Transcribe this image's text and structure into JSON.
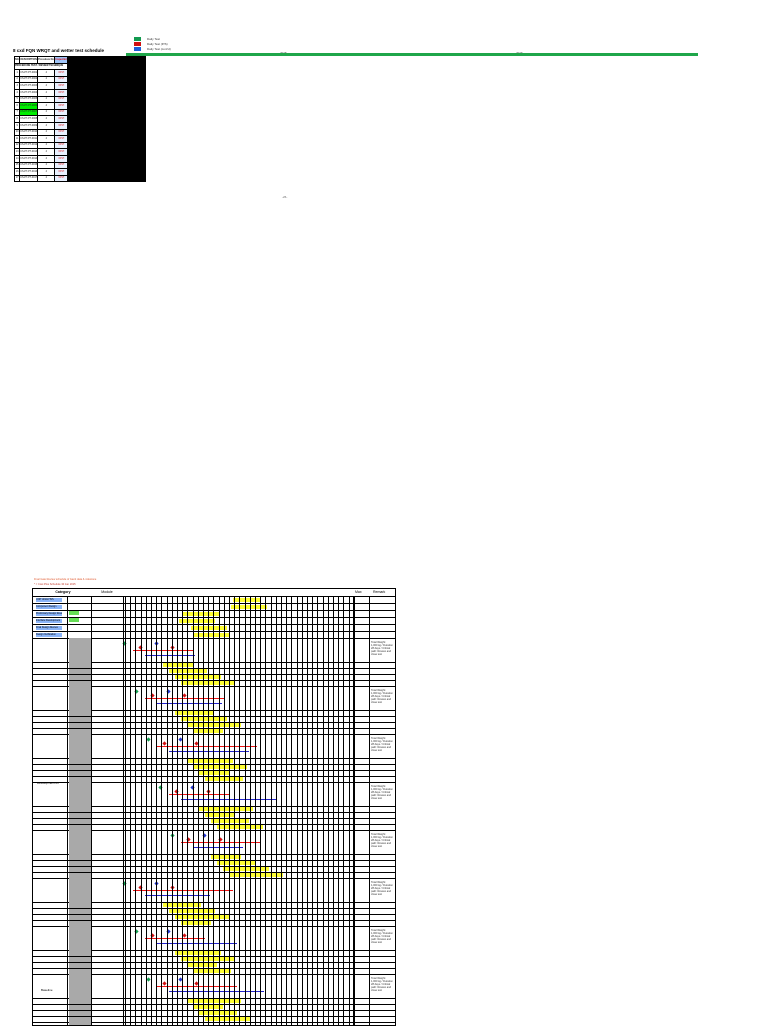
{
  "legend": {
    "items": [
      {
        "label": "Daily Test",
        "color": "#129a4f"
      },
      {
        "label": "Daily Test (P/S)",
        "color": "#d01010"
      },
      {
        "label": "Daily Test (cont'd)",
        "color": "#1a5fd8"
      }
    ]
  },
  "sheet": {
    "title": "8 cxd  FQN WRQT and wetter  test schedule",
    "year_left": "2015",
    "year_right": "2016",
    "headers": {
      "no": "NO.",
      "description": "DESCRIPTION",
      "procedure": "Procedure No.",
      "inspection": "Inspection"
    },
    "section": "PROCEDURE TEST / REVIEW TECHNIQUE",
    "rows": [
      {
        "no": "1",
        "desc": "CS-PT-PT-0001",
        "proc": "4",
        "ins": "FP-H"
      },
      {
        "no": "2",
        "desc": "CS-PT-PT-0002",
        "proc": "4",
        "ins": "FP-H"
      },
      {
        "no": "3",
        "desc": "CS-PT-PT-0003",
        "proc": "4",
        "ins": "FP-H"
      },
      {
        "no": "4",
        "desc": "CS-PT-PT-0004",
        "proc": "4",
        "ins": "FP-H"
      },
      {
        "no": "5",
        "desc": "CS-PT-PT-0005",
        "proc": "4",
        "ins": "FP-H"
      },
      {
        "no": "6",
        "desc": "CS-PT-PT-0006",
        "proc": "4",
        "ins": "FP-H"
      },
      {
        "no": "7",
        "desc": "CS-PT-PT-0007",
        "proc": "4",
        "ins": "FP-H"
      },
      {
        "no": "8",
        "desc": "CS-PT-PT-0008",
        "proc": "4",
        "ins": "FP-H"
      },
      {
        "no": "9",
        "desc": "CS-PT-PT-0009",
        "proc": "4",
        "ins": "FP-H"
      },
      {
        "no": "10",
        "desc": "CS-PT-PT-0010",
        "proc": "4",
        "ins": "FP-H"
      },
      {
        "no": "11",
        "desc": "CS-PT-PT-0011",
        "proc": "4",
        "ins": "FP-H"
      },
      {
        "no": "12",
        "desc": "CS-PT-PT-0012",
        "proc": "4",
        "ins": "FP-H"
      },
      {
        "no": "13",
        "desc": "CS-PT-PT-0013",
        "proc": "4",
        "ins": "FP-H"
      },
      {
        "no": "14",
        "desc": "CS-PT-PT-0014",
        "proc": "4",
        "ins": "FP-H"
      },
      {
        "no": "15",
        "desc": "CS-PT-PT-0015",
        "proc": "4",
        "ins": "FP-H"
      },
      {
        "no": "16",
        "desc": "CS-PT-PT-0016",
        "proc": "4",
        "ins": "FP-H"
      },
      {
        "no": "17",
        "desc": "CS-PT-PT-0017",
        "proc": "4",
        "ins": "FP-H"
      }
    ],
    "note": "-26-"
  },
  "gantt": {
    "notes": [
      "Final Gate Review schedule of Gantt data & milestone",
      "* = Cost Plus Schedule 30 Jan 2015"
    ],
    "headers": {
      "category": "Category",
      "module": "Module",
      "max": "Max",
      "remark": "Remark"
    },
    "top_rows": [
      "UNIT ANALYSIS",
      "Component Design",
      "Preliminary Design Review",
      "Interface Development",
      "Final Design Review",
      "Design Verification"
    ],
    "groups": [
      "Development #1",
      "Baseline"
    ],
    "remark_text": "Total Weight: 1,000 kg / Duration 28 days / Critical path: Review and close test"
  }
}
